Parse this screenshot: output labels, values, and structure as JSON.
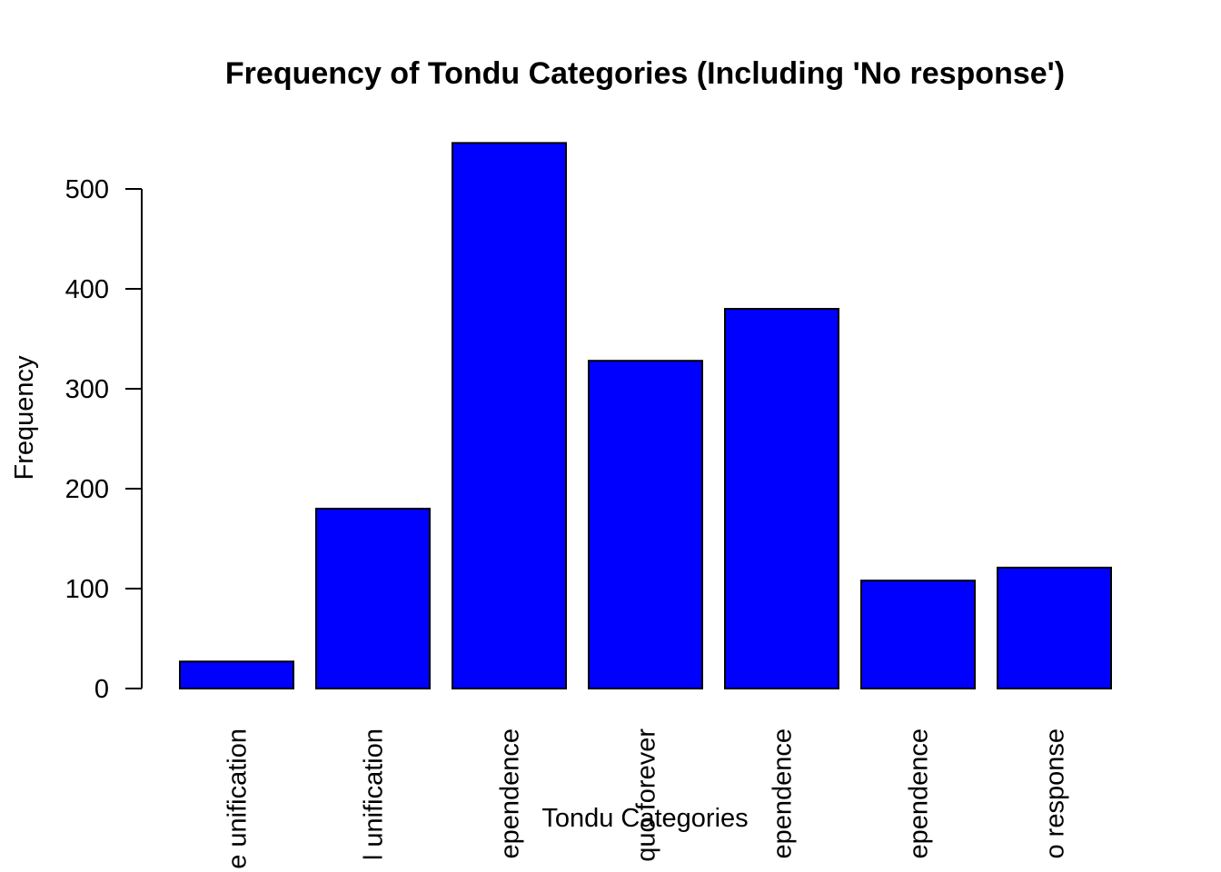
{
  "chart_data": {
    "type": "bar",
    "title": "Frequency of Tondu Categories (Including 'No response')",
    "xlabel": "Tondu Categories",
    "ylabel": "Frequency",
    "categories": [
      "Immediate unification",
      "Status quo, eventual unification",
      "Status quo, decide later on independence",
      "Status quo forever",
      "Status quo, eventual independence",
      "Immediate independence",
      "No response"
    ],
    "category_labels_visible": [
      "e unification",
      "l unification",
      "ependence",
      "quo forever",
      "ependence",
      "ependence",
      "o response"
    ],
    "values": [
      27,
      180,
      546,
      328,
      380,
      108,
      121
    ],
    "ylim": [
      0,
      546
    ],
    "yticks": [
      0,
      100,
      200,
      300,
      400,
      500
    ],
    "bar_color": "#0000ff",
    "bar_border_color": "#000000",
    "grid": false,
    "legend": "none"
  }
}
